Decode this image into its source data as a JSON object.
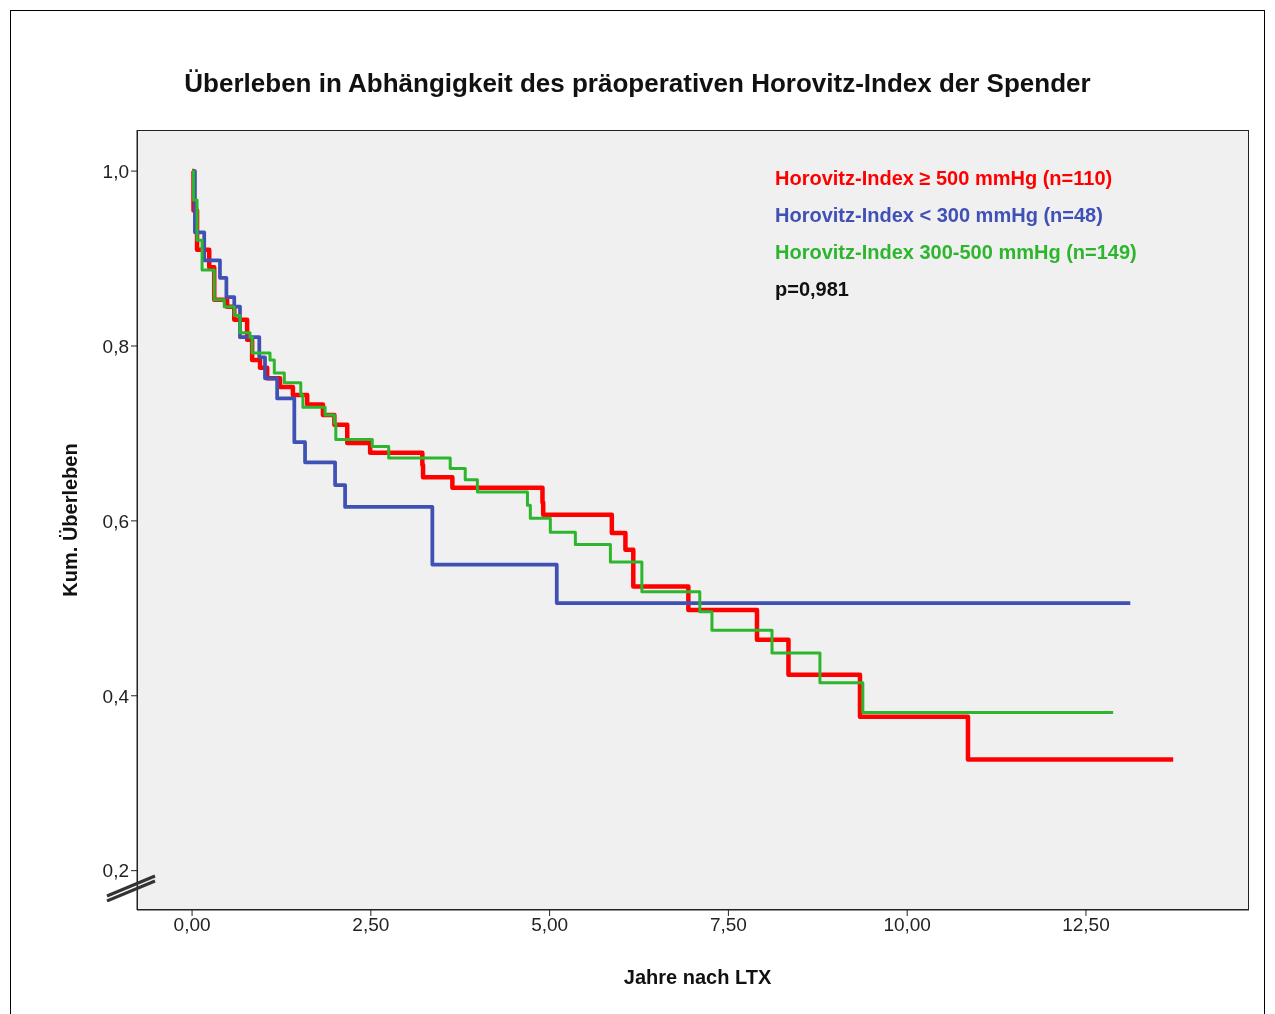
{
  "chart_data": {
    "type": "step",
    "title": "Überleben in Abhängigkeit des präoperativen Horovitz-Index der Spender",
    "xlabel": "Jahre nach LTX",
    "ylabel": "Kum. Überleben",
    "legend": "top right",
    "annotations": [
      "p=0,981"
    ],
    "xlim": [
      -0.77,
      14.78
    ],
    "ylim": [
      0.155,
      1.047
    ],
    "xticks": [
      {
        "value": 0,
        "label": "0,00"
      },
      {
        "value": 2.5,
        "label": "2,50"
      },
      {
        "value": 5,
        "label": "5,00"
      },
      {
        "value": 7.5,
        "label": "7,50"
      },
      {
        "value": 10,
        "label": "10,00"
      },
      {
        "value": 12.5,
        "label": "12,50"
      }
    ],
    "yticks": [
      {
        "value": 0.2,
        "label": "0,2"
      },
      {
        "value": 0.4,
        "label": "0,4"
      },
      {
        "value": 0.6,
        "label": "0,6"
      },
      {
        "value": 0.8,
        "label": "0,8"
      },
      {
        "value": 1.0,
        "label": "1,0"
      }
    ],
    "series": [
      {
        "name": "Horovitz-Index ≥ 500 mmHg (n=110)",
        "color": "#ff0000",
        "x": [
          0,
          0.02,
          0.07,
          0.24,
          0.31,
          0.49,
          0.59,
          0.77,
          0.84,
          0.95,
          1.05,
          1.23,
          1.41,
          1.61,
          1.83,
          1.99,
          2.17,
          2.49,
          3.22,
          3.23,
          3.64,
          4.9,
          4.91,
          5.87,
          6.06,
          6.17,
          6.94,
          7.9,
          8.34,
          9.34,
          10.85,
          13.72
        ],
        "values": [
          1,
          0.955,
          0.91,
          0.89,
          0.853,
          0.845,
          0.83,
          0.807,
          0.784,
          0.775,
          0.763,
          0.753,
          0.744,
          0.733,
          0.721,
          0.71,
          0.689,
          0.678,
          0.664,
          0.65,
          0.638,
          0.621,
          0.607,
          0.586,
          0.567,
          0.525,
          0.498,
          0.464,
          0.424,
          0.376,
          0.327,
          0.327
        ]
      },
      {
        "name": "Horovitz-Index < 300 mmHg (n=48)",
        "color": "#3f51b5",
        "x": [
          0,
          0.04,
          0.17,
          0.39,
          0.48,
          0.59,
          0.67,
          0.94,
          1.02,
          1.19,
          1.43,
          1.58,
          2.0,
          2.14,
          3.36,
          5.1,
          13.12
        ],
        "values": [
          1,
          0.93,
          0.898,
          0.878,
          0.856,
          0.845,
          0.81,
          0.787,
          0.763,
          0.74,
          0.69,
          0.667,
          0.641,
          0.616,
          0.55,
          0.506,
          0.506
        ]
      },
      {
        "name": "Horovitz-Index 300-500 mmHg (n=149)",
        "color": "#2db52d",
        "x": [
          0,
          0.02,
          0.07,
          0.14,
          0.31,
          0.45,
          0.59,
          0.67,
          0.81,
          0.84,
          1.09,
          1.15,
          1.29,
          1.52,
          1.55,
          1.86,
          1.99,
          2.01,
          2.52,
          2.75,
          3.61,
          3.82,
          3.99,
          4.69,
          4.73,
          5.01,
          5.36,
          5.85,
          6.29,
          7.1,
          7.27,
          8.11,
          8.78,
          9.38,
          12.88
        ],
        "values": [
          1,
          0.967,
          0.921,
          0.887,
          0.853,
          0.845,
          0.835,
          0.815,
          0.81,
          0.792,
          0.784,
          0.769,
          0.758,
          0.744,
          0.73,
          0.721,
          0.712,
          0.693,
          0.685,
          0.672,
          0.66,
          0.647,
          0.633,
          0.618,
          0.603,
          0.587,
          0.573,
          0.553,
          0.519,
          0.496,
          0.475,
          0.449,
          0.415,
          0.381,
          0.381
        ]
      }
    ]
  }
}
